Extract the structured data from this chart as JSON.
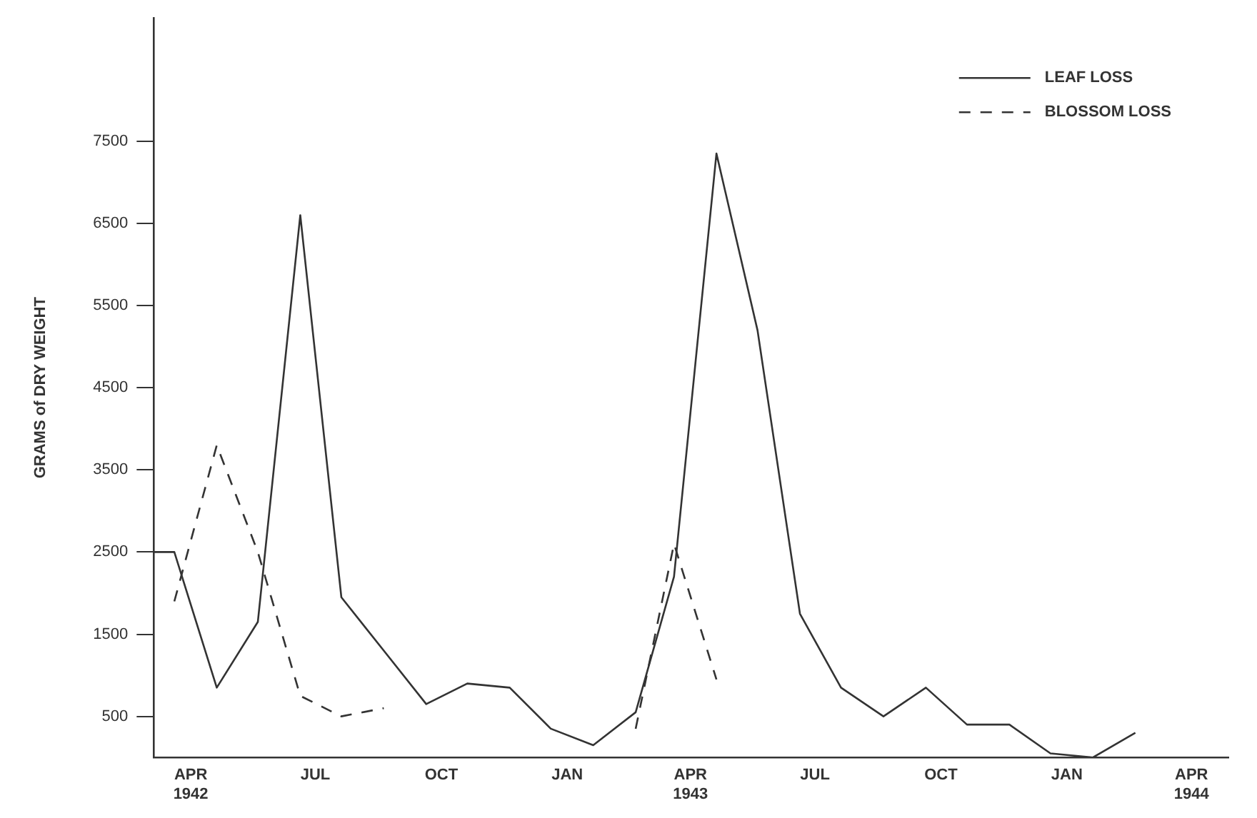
{
  "chart_data": {
    "type": "line",
    "ylabel": "GRAMS of DRY WEIGHT",
    "x": [
      "1942-03-05",
      "1942-03-20",
      "1942-04-20",
      "1942-05-20",
      "1942-06-20",
      "1942-07-20",
      "1942-08-20",
      "1942-09-20",
      "1942-10-20",
      "1942-11-20",
      "1942-12-20",
      "1943-01-20",
      "1943-02-20",
      "1943-03-20",
      "1943-04-20",
      "1943-05-20",
      "1943-06-20",
      "1943-07-20",
      "1943-08-20",
      "1943-09-20",
      "1943-10-20",
      "1943-11-20",
      "1943-12-20",
      "1944-01-20",
      "1944-02-20"
    ],
    "series": [
      {
        "name": "LEAF LOSS",
        "color": "#333333",
        "line_style": "solid",
        "values": [
          2500,
          2500,
          850,
          1650,
          6600,
          1950,
          1300,
          650,
          900,
          850,
          350,
          150,
          550,
          2200,
          7350,
          5200,
          1750,
          850,
          500,
          850,
          400,
          400,
          50,
          0,
          300
        ]
      },
      {
        "name": "BLOSSOM LOSS",
        "color": "#333333",
        "line_style": "dashed",
        "values": [
          null,
          1900,
          3800,
          2500,
          750,
          500,
          600,
          null,
          null,
          null,
          null,
          null,
          350,
          2600,
          950,
          null,
          null,
          null,
          null,
          null,
          null,
          null,
          null,
          null,
          null
        ]
      }
    ],
    "xlim": [
      "1942-03-05",
      "1944-04-28"
    ],
    "xticks": [
      {
        "value": "1942-04-01",
        "label": "APR\n1942"
      },
      {
        "value": "1942-07-01",
        "label": "JUL"
      },
      {
        "value": "1942-10-01",
        "label": "OCT"
      },
      {
        "value": "1943-01-01",
        "label": "JAN"
      },
      {
        "value": "1943-04-01",
        "label": "APR\n1943"
      },
      {
        "value": "1943-07-01",
        "label": "JUL"
      },
      {
        "value": "1943-10-01",
        "label": "OCT"
      },
      {
        "value": "1944-01-01",
        "label": "JAN"
      },
      {
        "value": "1944-04-01",
        "label": "APR\n1944"
      }
    ],
    "ylim": [
      0,
      9000
    ],
    "yticks": [
      500,
      1500,
      2500,
      3500,
      4500,
      5500,
      6500,
      7500
    ],
    "grid": false,
    "legend": "top right",
    "marker": "none"
  }
}
